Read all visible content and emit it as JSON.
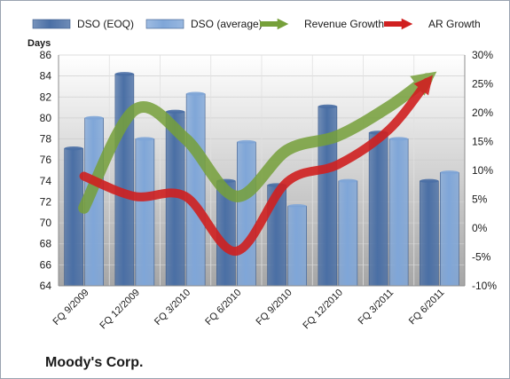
{
  "company": "Moody's Corp.",
  "chart_data": {
    "type": "bar",
    "categories": [
      "FQ 9/2009",
      "FQ 12/2009",
      "FQ 3/2010",
      "FQ 6/2010",
      "FQ 9/2010",
      "FQ 12/2010",
      "FQ 3/2011",
      "FQ 6/2011"
    ],
    "left_axis": {
      "title": "Days",
      "ylim": [
        64,
        86
      ],
      "ticks": [
        "64",
        "66",
        "68",
        "70",
        "72",
        "74",
        "76",
        "78",
        "80",
        "82",
        "84",
        "86"
      ]
    },
    "right_axis": {
      "ylim": [
        -10,
        30
      ],
      "ticks": [
        "-10%",
        "-5%",
        "0%",
        "5%",
        "10%",
        "15%",
        "20%",
        "25%",
        "30%"
      ]
    },
    "grid": true,
    "legend_position": "top",
    "bar_series": [
      {
        "name": "DSO (EOQ)",
        "axis": "left",
        "color": "#4a6fa5",
        "values": [
          77.1,
          84.2,
          80.6,
          74.0,
          73.6,
          81.1,
          78.6,
          74.0
        ]
      },
      {
        "name": "DSO (average)",
        "axis": "left",
        "color": "#7fa6d8",
        "values": [
          80.0,
          78.0,
          82.3,
          77.7,
          71.6,
          74.0,
          78.0,
          74.8
        ]
      }
    ],
    "line_series": [
      {
        "name": "Revenue Growth",
        "axis": "right",
        "color": "#76a03a",
        "values": [
          3.5,
          20.5,
          15.5,
          5.5,
          13.5,
          16.0,
          21.0,
          26.5
        ]
      },
      {
        "name": "AR Growth",
        "axis": "right",
        "color": "#d02020",
        "values": [
          9.0,
          5.5,
          5.5,
          -4.0,
          8.0,
          11.0,
          17.0,
          26.5
        ]
      }
    ]
  }
}
